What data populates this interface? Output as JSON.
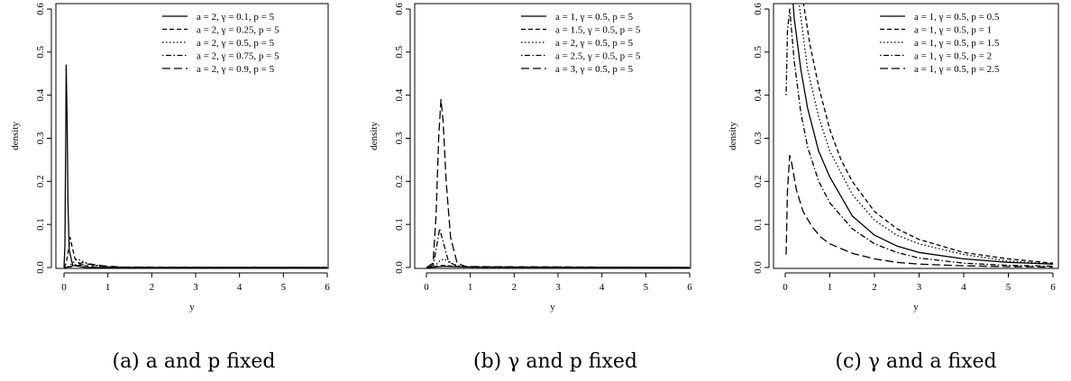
{
  "chart_data": [
    {
      "type": "line",
      "xlabel": "y",
      "ylabel": "density",
      "xlim": [
        0,
        6
      ],
      "ylim": [
        0,
        0.6
      ],
      "xticks": [
        "0",
        "1",
        "2",
        "3",
        "4",
        "5",
        "6"
      ],
      "yticks": [
        "0.0",
        "0.1",
        "0.2",
        "0.3",
        "0.4",
        "0.5",
        "0.6"
      ],
      "grid": false,
      "legend": "top-right",
      "caption": "(a) a and p fixed",
      "series": [
        {
          "name": "a = 2, γ = 0.1, p = 5",
          "style": "solid",
          "points": [
            [
              0,
              0
            ],
            [
              0.02,
              0.05
            ],
            [
              0.04,
              0.3
            ],
            [
              0.05,
              0.47
            ],
            [
              0.07,
              0.35
            ],
            [
              0.09,
              0.15
            ],
            [
              0.12,
              0.04
            ],
            [
              0.2,
              0.005
            ],
            [
              0.5,
              0
            ],
            [
              6,
              0
            ]
          ]
        },
        {
          "name": "a = 2, γ = 0.25, p = 5",
          "style": "dashed",
          "points": [
            [
              0,
              0
            ],
            [
              0.05,
              0.01
            ],
            [
              0.1,
              0.04
            ],
            [
              0.14,
              0.07
            ],
            [
              0.18,
              0.05
            ],
            [
              0.25,
              0.02
            ],
            [
              0.4,
              0.005
            ],
            [
              0.8,
              0
            ],
            [
              6,
              0
            ]
          ]
        },
        {
          "name": "a = 2, γ = 0.5, p = 5",
          "style": "dotted",
          "points": [
            [
              0,
              0
            ],
            [
              0.1,
              0.002
            ],
            [
              0.2,
              0.01
            ],
            [
              0.3,
              0.02
            ],
            [
              0.4,
              0.015
            ],
            [
              0.6,
              0.006
            ],
            [
              1,
              0.001
            ],
            [
              6,
              0
            ]
          ]
        },
        {
          "name": "a = 2, γ = 0.75, p = 5",
          "style": "dotdash",
          "points": [
            [
              0,
              0
            ],
            [
              0.15,
              0.002
            ],
            [
              0.3,
              0.008
            ],
            [
              0.45,
              0.012
            ],
            [
              0.65,
              0.006
            ],
            [
              1,
              0.002
            ],
            [
              1.5,
              0
            ],
            [
              6,
              0
            ]
          ]
        },
        {
          "name": "a = 2, γ = 0.9, p = 5",
          "style": "longdash",
          "points": [
            [
              0,
              0
            ],
            [
              0.2,
              0.002
            ],
            [
              0.4,
              0.006
            ],
            [
              0.6,
              0.008
            ],
            [
              0.9,
              0.004
            ],
            [
              1.3,
              0.001
            ],
            [
              6,
              0
            ]
          ]
        }
      ]
    },
    {
      "type": "line",
      "xlabel": "y",
      "ylabel": "density",
      "xlim": [
        0,
        6
      ],
      "ylim": [
        0,
        0.6
      ],
      "xticks": [
        "0",
        "1",
        "2",
        "3",
        "4",
        "5",
        "6"
      ],
      "yticks": [
        "0.0",
        "0.1",
        "0.2",
        "0.3",
        "0.4",
        "0.5",
        "0.6"
      ],
      "grid": false,
      "legend": "top-right",
      "caption": "(b) γ and p fixed",
      "series": [
        {
          "name": "a = 1, γ = 0.5, p = 5",
          "style": "solid",
          "points": [
            [
              0,
              0
            ],
            [
              0.2,
              0.001
            ],
            [
              0.4,
              0.003
            ],
            [
              0.6,
              0.002
            ],
            [
              1,
              0.001
            ],
            [
              6,
              0
            ]
          ]
        },
        {
          "name": "a = 1.5, γ = 0.5, p = 5",
          "style": "dashed",
          "points": [
            [
              0,
              0
            ],
            [
              0.2,
              0.002
            ],
            [
              0.35,
              0.005
            ],
            [
              0.5,
              0.004
            ],
            [
              0.8,
              0.001
            ],
            [
              6,
              0
            ]
          ]
        },
        {
          "name": "a = 2, γ = 0.5, p = 5",
          "style": "dotted",
          "points": [
            [
              0,
              0
            ],
            [
              0.2,
              0.004
            ],
            [
              0.3,
              0.015
            ],
            [
              0.4,
              0.02
            ],
            [
              0.55,
              0.01
            ],
            [
              0.8,
              0.002
            ],
            [
              1.2,
              0
            ],
            [
              6,
              0
            ]
          ]
        },
        {
          "name": "a = 2.5, γ = 0.5, p = 5",
          "style": "dotdash",
          "points": [
            [
              0,
              0
            ],
            [
              0.15,
              0.005
            ],
            [
              0.22,
              0.04
            ],
            [
              0.3,
              0.09
            ],
            [
              0.38,
              0.06
            ],
            [
              0.5,
              0.015
            ],
            [
              0.7,
              0.002
            ],
            [
              6,
              0
            ]
          ]
        },
        {
          "name": "a = 3, γ = 0.5, p = 5",
          "style": "longdash",
          "points": [
            [
              0,
              0
            ],
            [
              0.15,
              0.01
            ],
            [
              0.22,
              0.12
            ],
            [
              0.28,
              0.3
            ],
            [
              0.33,
              0.39
            ],
            [
              0.38,
              0.34
            ],
            [
              0.45,
              0.2
            ],
            [
              0.55,
              0.07
            ],
            [
              0.7,
              0.01
            ],
            [
              0.9,
              0.002
            ],
            [
              6,
              0
            ]
          ]
        }
      ]
    },
    {
      "type": "line",
      "xlabel": "y",
      "ylabel": "density",
      "xlim": [
        0,
        6
      ],
      "ylim": [
        0,
        0.6
      ],
      "xticks": [
        "0",
        "1",
        "2",
        "3",
        "4",
        "5",
        "6"
      ],
      "yticks": [
        "0.0",
        "0.1",
        "0.2",
        "0.3",
        "0.4",
        "0.5",
        "0.6"
      ],
      "grid": false,
      "legend": "top-right",
      "caption": "(c) γ and a fixed",
      "series": [
        {
          "name": "a = 1, γ = 0.5, p = 0.5",
          "style": "solid",
          "points": [
            [
              0.05,
              0.8
            ],
            [
              0.2,
              0.58
            ],
            [
              0.35,
              0.46
            ],
            [
              0.5,
              0.37
            ],
            [
              0.75,
              0.27
            ],
            [
              1,
              0.21
            ],
            [
              1.5,
              0.12
            ],
            [
              2,
              0.075
            ],
            [
              2.5,
              0.05
            ],
            [
              3,
              0.035
            ],
            [
              4,
              0.02
            ],
            [
              5,
              0.012
            ],
            [
              6,
              0.008
            ]
          ]
        },
        {
          "name": "a = 1, γ = 0.5, p = 1",
          "style": "dashed",
          "points": [
            [
              0.3,
              0.8
            ],
            [
              0.4,
              0.62
            ],
            [
              0.55,
              0.52
            ],
            [
              0.75,
              0.42
            ],
            [
              1,
              0.32
            ],
            [
              1.25,
              0.25
            ],
            [
              1.5,
              0.2
            ],
            [
              2,
              0.13
            ],
            [
              2.5,
              0.09
            ],
            [
              3,
              0.065
            ],
            [
              4,
              0.035
            ],
            [
              5,
              0.02
            ],
            [
              6,
              0.01
            ]
          ]
        },
        {
          "name": "a = 1, γ = 0.5, p = 1.5",
          "style": "dotted",
          "points": [
            [
              0.2,
              0.8
            ],
            [
              0.3,
              0.62
            ],
            [
              0.5,
              0.46
            ],
            [
              0.75,
              0.35
            ],
            [
              1,
              0.27
            ],
            [
              1.5,
              0.17
            ],
            [
              2,
              0.11
            ],
            [
              2.5,
              0.075
            ],
            [
              3,
              0.055
            ],
            [
              4,
              0.03
            ],
            [
              5,
              0.015
            ],
            [
              6,
              0.008
            ]
          ]
        },
        {
          "name": "a = 1, γ = 0.5, p = 2",
          "style": "dotdash",
          "points": [
            [
              0.02,
              0.4
            ],
            [
              0.05,
              0.55
            ],
            [
              0.1,
              0.6
            ],
            [
              0.2,
              0.48
            ],
            [
              0.35,
              0.36
            ],
            [
              0.5,
              0.28
            ],
            [
              0.75,
              0.2
            ],
            [
              1,
              0.15
            ],
            [
              1.5,
              0.09
            ],
            [
              2,
              0.055
            ],
            [
              2.5,
              0.035
            ],
            [
              3,
              0.022
            ],
            [
              4,
              0.01
            ],
            [
              5,
              0.005
            ],
            [
              6,
              0.003
            ]
          ]
        },
        {
          "name": "a = 1, γ = 0.5, p = 2.5",
          "style": "longdash",
          "points": [
            [
              0.02,
              0.03
            ],
            [
              0.05,
              0.18
            ],
            [
              0.1,
              0.26
            ],
            [
              0.15,
              0.24
            ],
            [
              0.25,
              0.18
            ],
            [
              0.4,
              0.13
            ],
            [
              0.6,
              0.095
            ],
            [
              0.8,
              0.07
            ],
            [
              1,
              0.055
            ],
            [
              1.5,
              0.033
            ],
            [
              2,
              0.02
            ],
            [
              2.5,
              0.012
            ],
            [
              3,
              0.008
            ],
            [
              4,
              0.004
            ],
            [
              5,
              0.002
            ],
            [
              6,
              0.001
            ]
          ]
        }
      ]
    }
  ]
}
